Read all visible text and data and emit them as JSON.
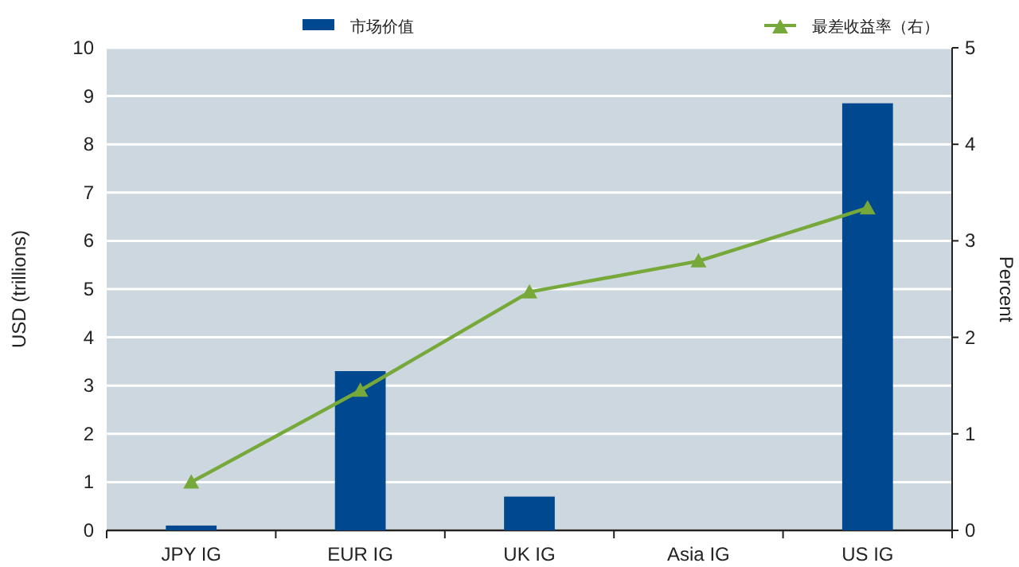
{
  "chart_data": {
    "type": "bar",
    "categories": [
      "JPY IG",
      "EUR IG",
      "UK IG",
      "Asia IG",
      "US IG"
    ],
    "series": [
      {
        "name": "市场价值",
        "color": "#004990",
        "values": [
          0.1,
          3.3,
          0.7,
          null,
          8.85
        ]
      },
      {
        "name": "最差收益率（右）",
        "type": "line",
        "axis": "y2",
        "color": "#76a83a",
        "values": [
          0.5,
          1.45,
          2.47,
          2.79,
          3.34
        ]
      }
    ],
    "ylabel": "USD (trillions)",
    "y2label": "Percent",
    "ylim": [
      0,
      10
    ],
    "yticks": [
      0,
      1,
      2,
      3,
      4,
      5,
      6,
      7,
      8,
      9,
      10
    ],
    "y2lim": [
      0,
      5
    ],
    "y2ticks": [
      0,
      1,
      2,
      3,
      4,
      5
    ],
    "grid": "y",
    "legend": "top",
    "marker": "triangle"
  }
}
